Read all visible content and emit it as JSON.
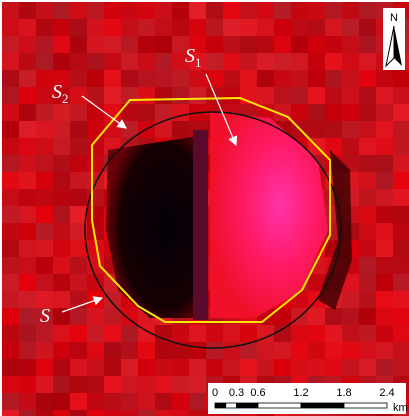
{
  "labels": [
    {
      "letter": "S",
      "subscript": "1"
    },
    {
      "letter": "S",
      "subscript": "2"
    },
    {
      "letter": "S"
    }
  ],
  "north": "N",
  "scale_bar": {
    "ticks": [
      0,
      0.3,
      0.6,
      1.2,
      1.8,
      2.4
    ],
    "unit": "km"
  }
}
